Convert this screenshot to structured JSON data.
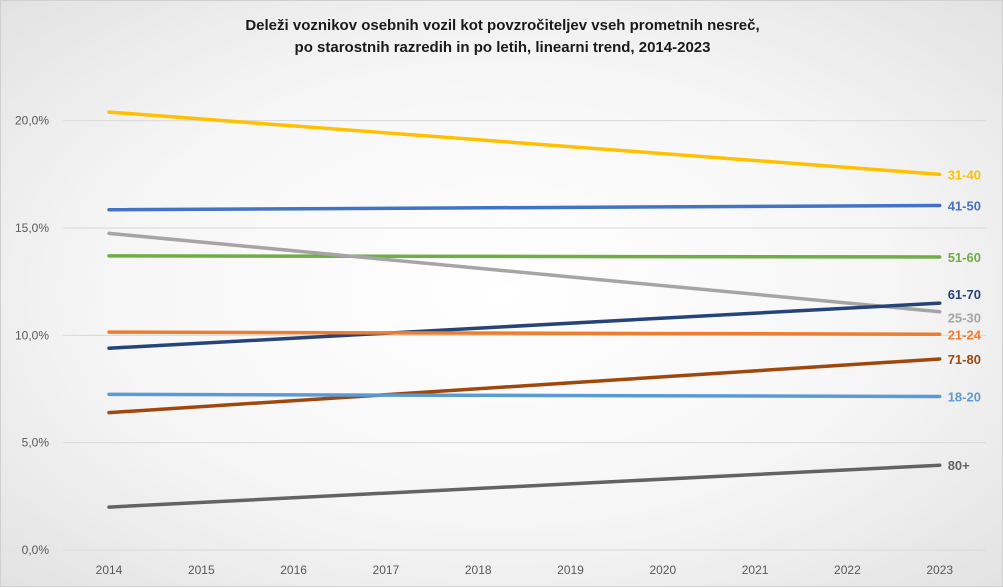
{
  "chart_data": {
    "type": "line",
    "title_lines": [
      "Deleži voznikov osebnih vozil kot povzročiteljev vseh prometnih nesreč,",
      "po starostnih razredih in po letih, linearni trend, 2014-2023"
    ],
    "x": [
      "2014",
      "2015",
      "2016",
      "2017",
      "2018",
      "2019",
      "2020",
      "2021",
      "2022",
      "2023"
    ],
    "ylim": [
      0,
      22.5
    ],
    "yticks": [
      {
        "value": 0,
        "label": "0,0%"
      },
      {
        "value": 5,
        "label": "5,0%"
      },
      {
        "value": 10,
        "label": "10,0%"
      },
      {
        "value": 15,
        "label": "15,0%"
      },
      {
        "value": 20,
        "label": "20,0%"
      }
    ],
    "grid": true,
    "series": [
      {
        "name": "31-40",
        "start": 20.4,
        "end": 17.5,
        "color": "#FFC000"
      },
      {
        "name": "41-50",
        "start": 15.85,
        "end": 16.05,
        "color": "#4472C4"
      },
      {
        "name": "51-60",
        "start": 13.7,
        "end": 13.65,
        "color": "#70AD47"
      },
      {
        "name": "25-30",
        "start": 14.75,
        "end": 11.1,
        "color": "#A5A5A5"
      },
      {
        "name": "61-70",
        "start": 9.4,
        "end": 11.5,
        "color": "#264478"
      },
      {
        "name": "21-24",
        "start": 10.15,
        "end": 10.05,
        "color": "#ED7D31"
      },
      {
        "name": "71-80",
        "start": 6.4,
        "end": 8.9,
        "color": "#9E480E"
      },
      {
        "name": "18-20",
        "start": 7.25,
        "end": 7.15,
        "color": "#5B9BD5"
      },
      {
        "name": "80+",
        "start": 2.0,
        "end": 3.95,
        "color": "#636363"
      }
    ]
  }
}
